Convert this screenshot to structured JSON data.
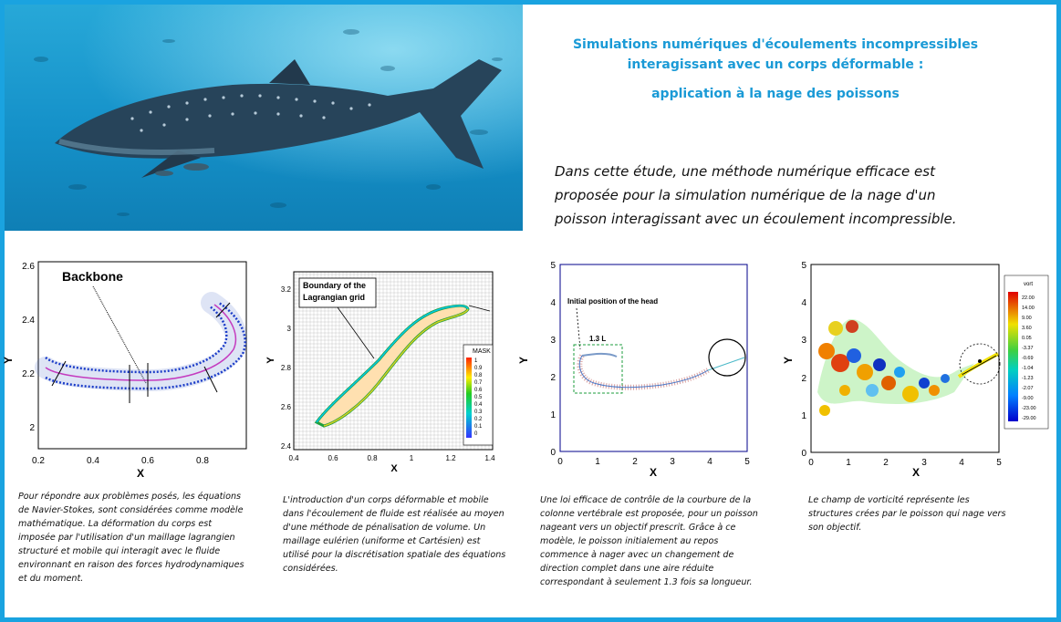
{
  "header": {
    "title_line1": "Simulations numériques d'écoulements incompressibles",
    "title_line2": "interagissant avec un corps déformable :",
    "title_line3": "application à la nage des poissons",
    "intro": "Dans cette étude, une méthode numérique efficace est proposée pour la simulation numérique de la nage d'un poisson interagissant avec un écoulement incompressible."
  },
  "panels": [
    {
      "annotation": "Backbone",
      "xlabel": "X",
      "ylabel": "Y",
      "xticks": [
        "0.2",
        "0.4",
        "0.6",
        "0.8"
      ],
      "yticks": [
        "2",
        "2.2",
        "2.4",
        "2.6"
      ],
      "caption": "Pour répondre aux problèmes posés, les équations de Navier-Stokes, sont considérées comme modèle mathématique. La déformation du corps est imposée par l'utilisation d'un maillage lagrangien structuré et mobile qui interagit avec le fluide environnant en raison des forces hydrodynamiques et du moment."
    },
    {
      "annotation_line1": "Boundary of the",
      "annotation_line2": "Lagrangian grid",
      "xlabel": "X",
      "ylabel": "Y",
      "xticks": [
        "0.4",
        "0.6",
        "0.8",
        "1",
        "1.2",
        "1.4"
      ],
      "yticks": [
        "2.4",
        "2.6",
        "2.8",
        "3",
        "3.2"
      ],
      "legend_title": "MASK",
      "legend_values": [
        "1",
        "0.9",
        "0.8",
        "0.7",
        "0.6",
        "0.5",
        "0.4",
        "0.3",
        "0.2",
        "0.1",
        "0"
      ],
      "caption": "L'introduction d'un corps déformable et mobile dans l'écoulement de fluide est réalisée au moyen d'une méthode de pénalisation de volume. Un maillage eulérien (uniforme et Cartésien)  est utilisé pour la discrétisation spatiale des équations considérées."
    },
    {
      "annotation": "Initial position of the head",
      "box_label": "1.3 L",
      "xlabel": "X",
      "ylabel": "Y",
      "xticks": [
        "0",
        "1",
        "2",
        "3",
        "4",
        "5"
      ],
      "yticks": [
        "0",
        "1",
        "2",
        "3",
        "4",
        "5"
      ],
      "caption": "Une loi efficace de contrôle de la courbure de la colonne vertébrale est proposée, pour un poisson nageant vers un objectif prescrit. Grâce à ce modèle, le poisson initialement au repos commence à nager avec un changement de direction complet dans une aire réduite correspondant à seulement 1.3 fois sa longueur."
    },
    {
      "xlabel": "X",
      "ylabel": "Y",
      "xticks": [
        "0",
        "1",
        "2",
        "3",
        "4",
        "5"
      ],
      "yticks": [
        "0",
        "1",
        "2",
        "3",
        "4",
        "5"
      ],
      "legend_title": "vort",
      "legend_values": [
        "22.00",
        "14.00",
        "9.00",
        "3.60",
        "0.05",
        "-3.37",
        "-0.69",
        "-1.04",
        "-1.23",
        "-2.07",
        "-9.00",
        "-23.00",
        "-29.00"
      ],
      "caption": "Le champ de vorticité représente les structures crées par le poisson qui nage vers son objectif."
    }
  ]
}
